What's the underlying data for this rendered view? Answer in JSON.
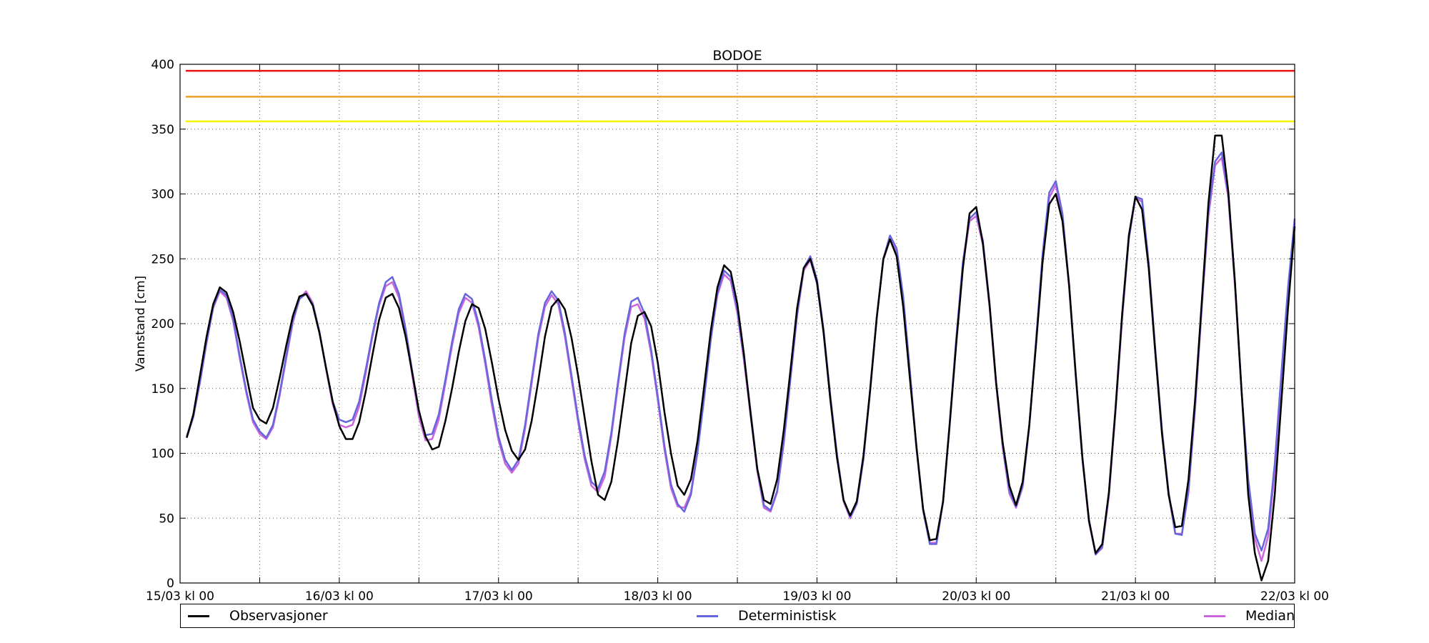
{
  "chart_data": {
    "type": "line",
    "title": "BODOE",
    "ylabel": "Vannstand [cm]",
    "xlabel": "",
    "ylim": [
      0,
      400
    ],
    "yticks": [
      0,
      50,
      100,
      150,
      200,
      250,
      300,
      350,
      400
    ],
    "x_range_hours": [
      0,
      168
    ],
    "xtick_labels": [
      {
        "hour": 0,
        "label": "15/03 kl 00"
      },
      {
        "hour": 24,
        "label": "16/03 kl 00"
      },
      {
        "hour": 48,
        "label": "17/03 kl 00"
      },
      {
        "hour": 72,
        "label": "18/03 kl 00"
      },
      {
        "hour": 96,
        "label": "19/03 kl 00"
      },
      {
        "hour": 120,
        "label": "20/03 kl 00"
      },
      {
        "hour": 144,
        "label": "21/03 kl 00"
      },
      {
        "hour": 168,
        "label": "22/03 kl 00"
      }
    ],
    "minor_xtick_hours": [
      12,
      36,
      60,
      84,
      108,
      132,
      156
    ],
    "grid": true,
    "legend_position": "bottom",
    "threshold_lines": [
      {
        "y": 395,
        "color": "#ee1111"
      },
      {
        "y": 375,
        "color": "#f0a020"
      },
      {
        "y": 356,
        "color": "#f5f500"
      }
    ],
    "series": [
      {
        "name": "Observasjoner",
        "color": "#000000",
        "x_start_hour": 1,
        "x_step_hour": 1,
        "values": [
          112,
          130,
          160,
          190,
          215,
          228,
          224,
          209,
          186,
          160,
          135,
          126,
          123,
          135,
          158,
          183,
          206,
          221,
          223,
          214,
          193,
          166,
          140,
          121,
          111,
          111,
          124,
          148,
          176,
          203,
          220,
          223,
          212,
          190,
          162,
          133,
          113,
          103,
          105,
          125,
          150,
          178,
          202,
          215,
          212,
          196,
          170,
          142,
          118,
          102,
          95,
          103,
          125,
          156,
          190,
          213,
          219,
          211,
          189,
          160,
          127,
          94,
          68,
          64,
          78,
          110,
          147,
          185,
          206,
          209,
          198,
          170,
          132,
          100,
          75,
          68,
          80,
          110,
          152,
          195,
          228,
          245,
          240,
          215,
          176,
          130,
          88,
          64,
          61,
          80,
          118,
          164,
          212,
          243,
          250,
          232,
          193,
          142,
          97,
          64,
          52,
          63,
          98,
          148,
          204,
          250,
          265,
          252,
          213,
          158,
          105,
          57,
          33,
          34,
          63,
          122,
          185,
          243,
          285,
          290,
          262,
          215,
          155,
          108,
          75,
          60,
          78,
          122,
          183,
          247,
          292,
          300,
          279,
          230,
          161,
          97,
          48,
          23,
          30,
          70,
          135,
          208,
          268,
          298,
          288,
          243,
          177,
          115,
          68,
          43,
          44,
          80,
          142,
          217,
          293,
          345,
          345,
          302,
          232,
          148,
          68,
          23,
          2,
          17,
          68,
          140,
          212,
          275
        ]
      },
      {
        "name": "Deterministisk",
        "color": "#6666dd",
        "x_start_hour": 1,
        "x_step_hour": 1,
        "values": [
          112,
          128,
          155,
          186,
          213,
          226,
          222,
          204,
          175,
          148,
          126,
          117,
          112,
          122,
          146,
          175,
          203,
          219,
          223,
          215,
          194,
          166,
          140,
          126,
          124,
          126,
          140,
          165,
          192,
          216,
          232,
          236,
          223,
          196,
          163,
          132,
          114,
          115,
          130,
          157,
          186,
          211,
          223,
          219,
          200,
          172,
          141,
          113,
          95,
          87,
          95,
          122,
          157,
          192,
          216,
          225,
          218,
          193,
          160,
          127,
          98,
          78,
          73,
          86,
          116,
          155,
          192,
          217,
          220,
          208,
          180,
          144,
          106,
          76,
          61,
          55,
          68,
          101,
          143,
          188,
          224,
          241,
          236,
          211,
          174,
          132,
          88,
          60,
          56,
          71,
          109,
          158,
          207,
          243,
          252,
          234,
          195,
          145,
          100,
          64,
          51,
          61,
          95,
          147,
          204,
          250,
          268,
          258,
          221,
          164,
          104,
          56,
          30,
          30,
          63,
          123,
          189,
          248,
          281,
          286,
          264,
          216,
          155,
          106,
          71,
          59,
          75,
          121,
          186,
          253,
          301,
          310,
          285,
          230,
          160,
          96,
          49,
          22,
          28,
          69,
          134,
          206,
          266,
          298,
          296,
          247,
          180,
          118,
          70,
          38,
          37,
          72,
          137,
          214,
          287,
          325,
          332,
          300,
          232,
          148,
          80,
          38,
          25,
          42,
          92,
          162,
          228,
          281
        ]
      },
      {
        "name": "Median",
        "color": "#cc66dd",
        "x_start_hour": 1,
        "x_step_hour": 1,
        "values": [
          113,
          129,
          155,
          185,
          212,
          225,
          220,
          202,
          173,
          146,
          124,
          115,
          111,
          120,
          144,
          173,
          201,
          219,
          225,
          216,
          194,
          165,
          138,
          122,
          120,
          122,
          136,
          162,
          190,
          214,
          229,
          232,
          220,
          194,
          160,
          128,
          110,
          111,
          126,
          154,
          183,
          208,
          220,
          216,
          197,
          169,
          137,
          110,
          92,
          85,
          92,
          119,
          154,
          189,
          213,
          222,
          215,
          190,
          157,
          124,
          95,
          75,
          70,
          82,
          113,
          152,
          189,
          213,
          215,
          204,
          177,
          141,
          103,
          73,
          59,
          58,
          70,
          103,
          145,
          189,
          222,
          238,
          233,
          208,
          171,
          129,
          86,
          58,
          55,
          70,
          108,
          157,
          206,
          241,
          249,
          231,
          193,
          143,
          98,
          63,
          50,
          61,
          96,
          149,
          205,
          249,
          265,
          255,
          219,
          162,
          103,
          56,
          31,
          31,
          62,
          121,
          186,
          245,
          279,
          283,
          261,
          213,
          153,
          104,
          69,
          58,
          74,
          121,
          185,
          250,
          297,
          307,
          282,
          228,
          159,
          95,
          47,
          22,
          27,
          67,
          132,
          204,
          265,
          297,
          294,
          245,
          178,
          117,
          68,
          38,
          38,
          70,
          135,
          212,
          283,
          322,
          328,
          297,
          229,
          147,
          78,
          34,
          17,
          36,
          86,
          155,
          222,
          278
        ]
      }
    ]
  }
}
